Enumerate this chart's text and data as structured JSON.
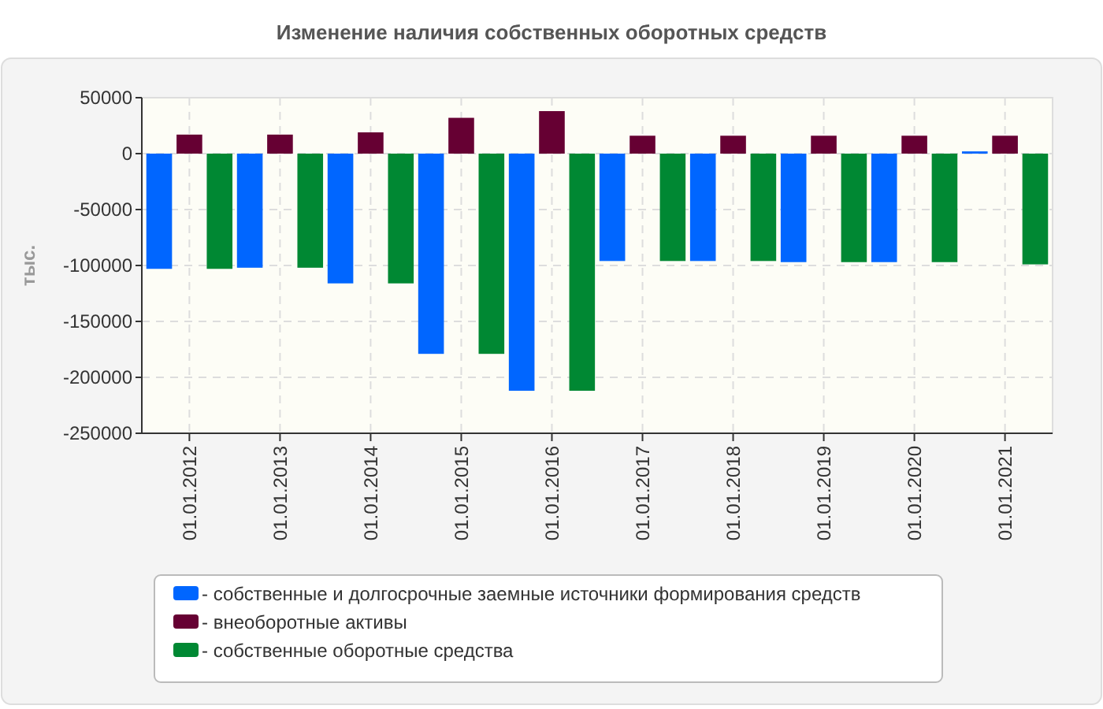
{
  "chart_data": {
    "type": "bar",
    "title": "Изменение наличия собственных оборотных средств",
    "ylabel": "тыс.",
    "categories": [
      "01.01.2012",
      "01.01.2013",
      "01.01.2014",
      "01.01.2015",
      "01.01.2016",
      "01.01.2017",
      "01.01.2018",
      "01.01.2019",
      "01.01.2020",
      "01.01.2021"
    ],
    "series": [
      {
        "name": "- собственные и долгосрочные заемные источники формирования средств",
        "color": "#0066ff",
        "values": [
          -103000,
          -102000,
          -116000,
          -179000,
          -212000,
          -96000,
          -96000,
          -97000,
          -97000,
          2000
        ]
      },
      {
        "name": "- внеоборотные активы",
        "color": "#660033",
        "values": [
          17000,
          17000,
          19000,
          32000,
          38000,
          16000,
          16000,
          16000,
          16000,
          16000
        ]
      },
      {
        "name": "- собственные оборотные средства",
        "color": "#008833",
        "values": [
          -103000,
          -102000,
          -116000,
          -179000,
          -212000,
          -96000,
          -96000,
          -97000,
          -97000,
          -99000
        ]
      }
    ],
    "ylim": [
      -250000,
      50000
    ],
    "yticks": [
      -250000,
      -200000,
      -150000,
      -100000,
      -50000,
      0,
      50000
    ],
    "grid": true,
    "legend": "bottom"
  }
}
